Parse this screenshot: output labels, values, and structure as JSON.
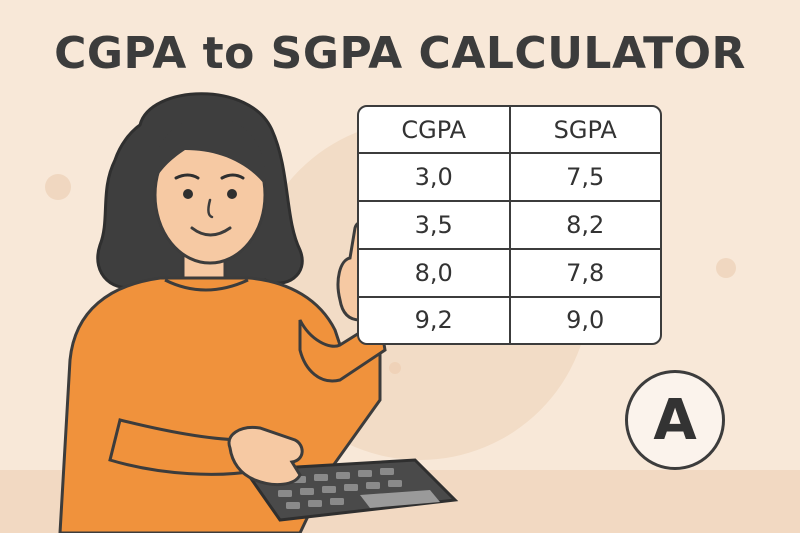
{
  "title": "CGPA to SGPA CALCULATOR",
  "table": {
    "headers": [
      "CGPA",
      "SGPA"
    ],
    "rows": [
      [
        "3,0",
        "7,5"
      ],
      [
        "3,5",
        "8,2"
      ],
      [
        "8,0",
        "7,8"
      ],
      [
        "9,2",
        "9,0"
      ]
    ]
  },
  "badge": {
    "letter": "A"
  },
  "illustration": {
    "subject": "woman-pointing-using-calculator",
    "colors": {
      "background": "#f8e8d8",
      "sweater": "#f0923c",
      "hair": "#3e3e3e",
      "skin": "#f6c9a3",
      "calculator": "#4a4a4a",
      "outline": "#3c3c3c"
    }
  }
}
